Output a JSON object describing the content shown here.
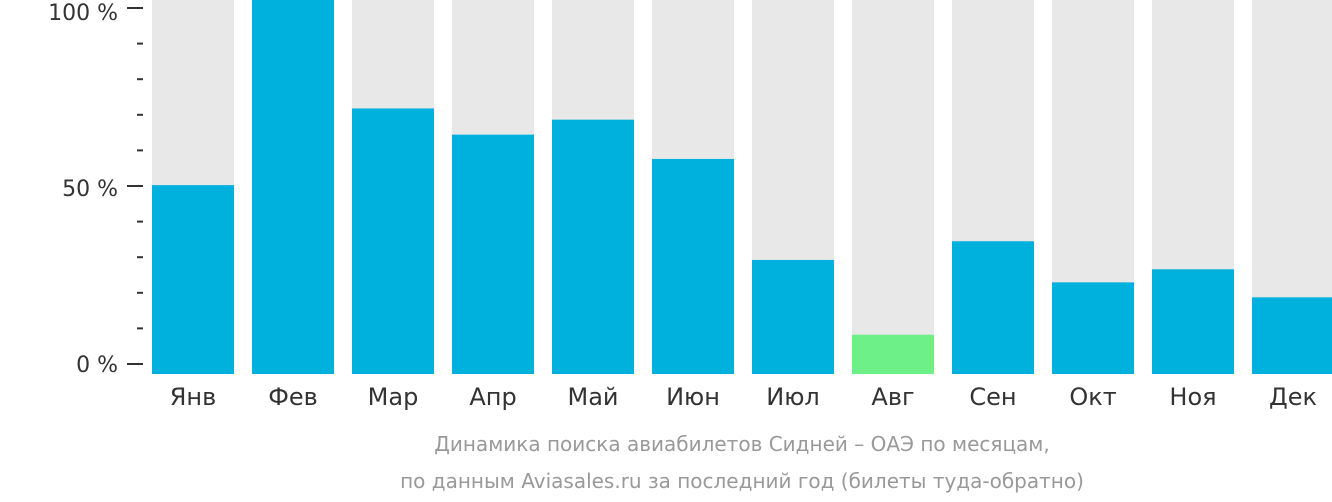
{
  "chart_data": {
    "type": "bar",
    "categories": [
      "Янв",
      "Фев",
      "Мар",
      "Апр",
      "Май",
      "Июн",
      "Июл",
      "Авг",
      "Сен",
      "Окт",
      "Ноя",
      "Дек"
    ],
    "values": [
      50.5,
      100,
      71,
      64,
      68,
      57.5,
      30.5,
      10.5,
      35.5,
      24.5,
      28,
      20.5
    ],
    "ylim": [
      0,
      100
    ],
    "yticks": [
      "0 %",
      "50 %",
      "100 %"
    ],
    "caption_line1": "Динамика поиска авиабилетов Сидней – ОАЭ по месяцам,",
    "caption_line2": "по данным Aviasales.ru за последний год (билеты туда-обратно)",
    "colors": {
      "bar": "#00b0dd",
      "highlight_bar": "#6cf087",
      "background_bar": "#e8e8e8",
      "axis": "#333333"
    },
    "highlight_index": 7
  }
}
